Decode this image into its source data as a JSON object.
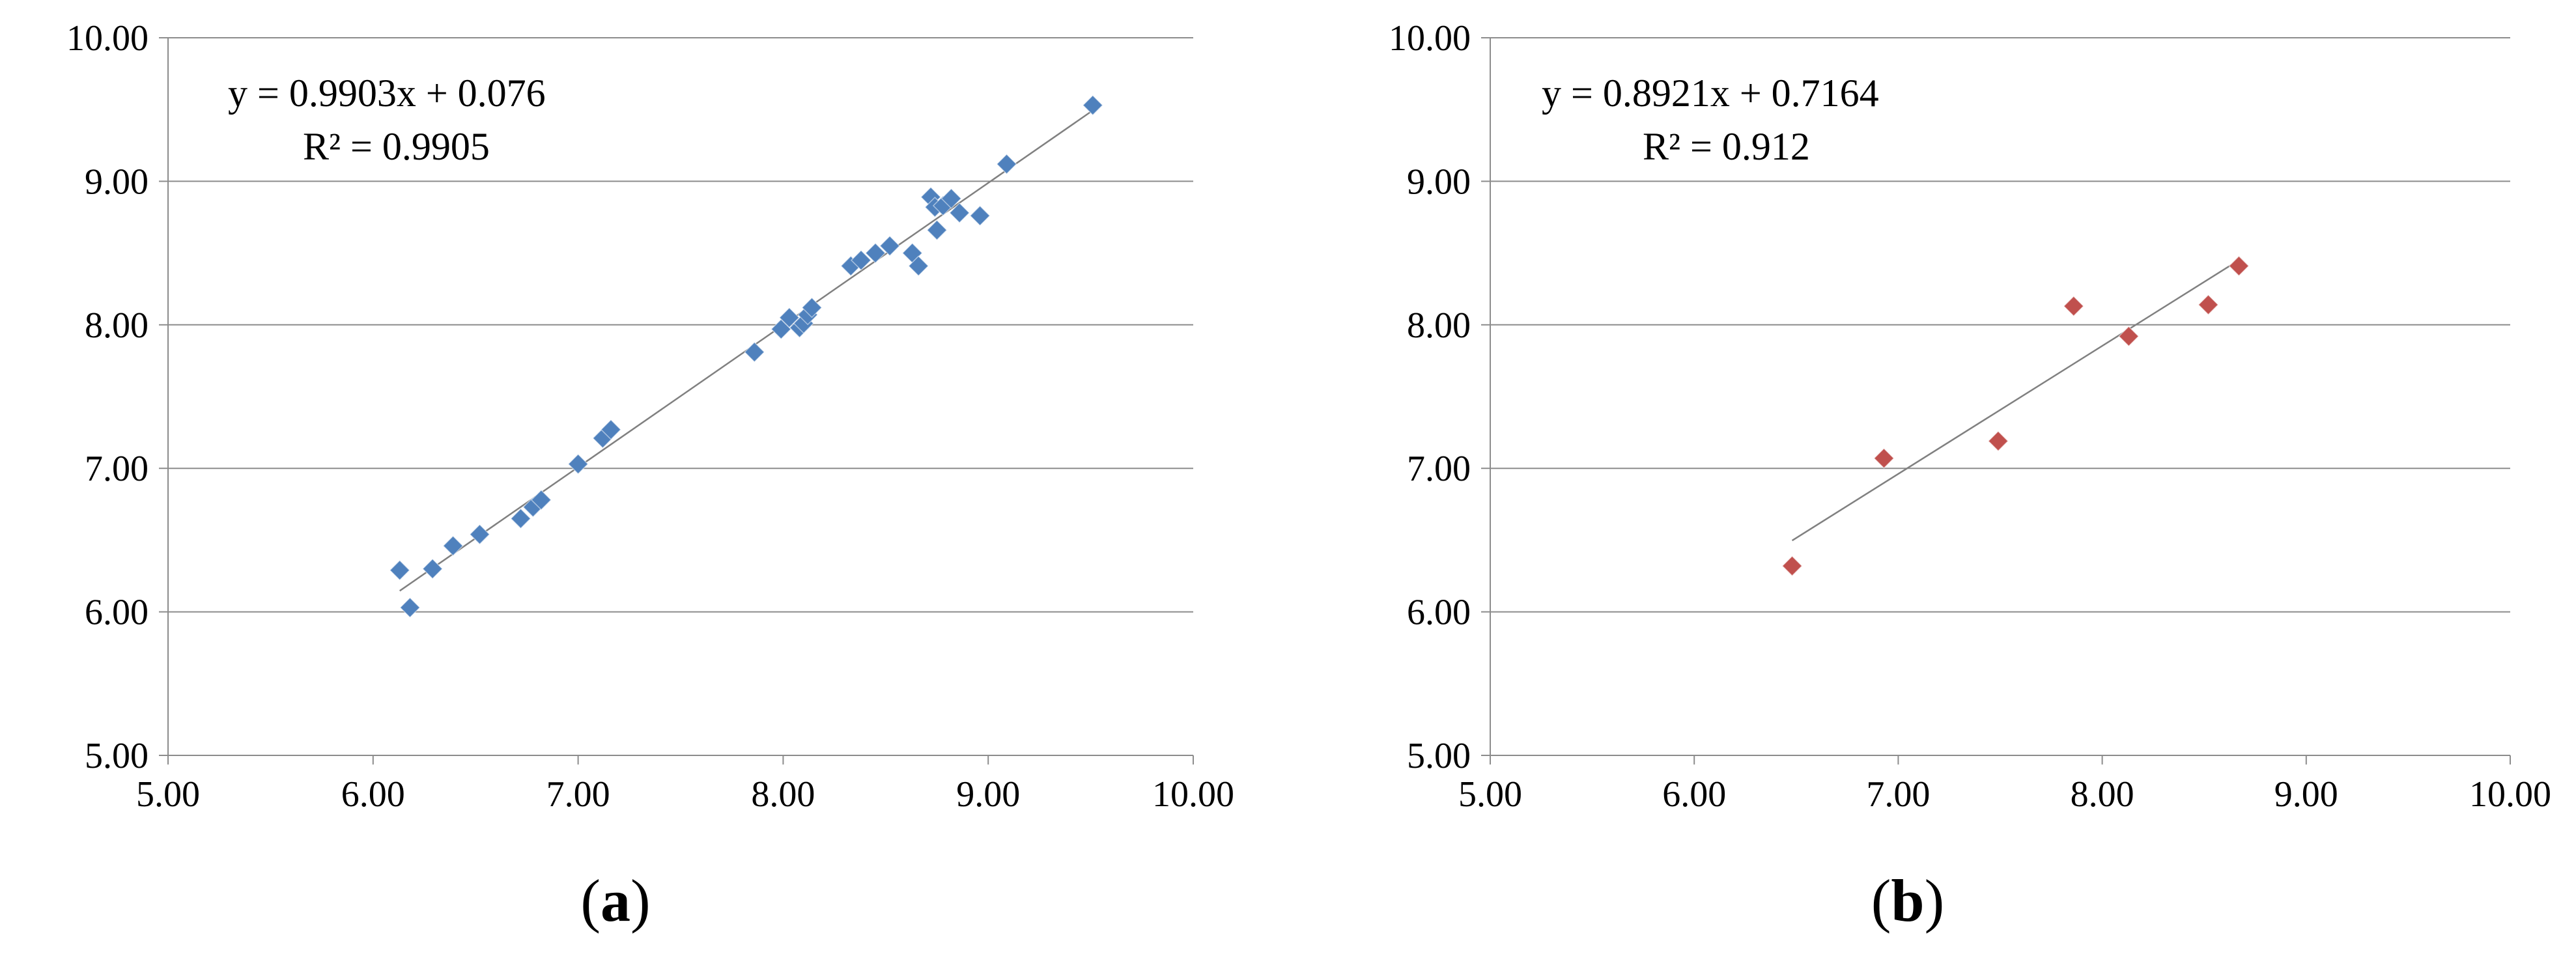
{
  "chart_data": [
    {
      "type": "scatter",
      "panel_label": "a",
      "trendline_equation": "y = 0.9903x + 0.076",
      "r_squared": "R² = 0.9905",
      "trendline": {
        "slope": 0.9903,
        "intercept": 0.076,
        "x_range": [
          6.13,
          9.52
        ]
      },
      "xlim": [
        5,
        10
      ],
      "ylim": [
        5,
        10
      ],
      "x_ticks": [
        "5.00",
        "6.00",
        "7.00",
        "8.00",
        "9.00",
        "10.00"
      ],
      "y_ticks": [
        "5.00",
        "6.00",
        "7.00",
        "8.00",
        "9.00",
        "10.00"
      ],
      "grid": "horizontal",
      "marker_color": "#4F81BD",
      "marker_shape": "diamond",
      "points": [
        [
          6.13,
          6.29
        ],
        [
          6.18,
          6.03
        ],
        [
          6.29,
          6.3
        ],
        [
          6.39,
          6.46
        ],
        [
          6.52,
          6.54
        ],
        [
          6.72,
          6.65
        ],
        [
          6.78,
          6.73
        ],
        [
          6.82,
          6.78
        ],
        [
          7.0,
          7.03
        ],
        [
          7.12,
          7.21
        ],
        [
          7.16,
          7.27
        ],
        [
          7.86,
          7.81
        ],
        [
          7.99,
          7.97
        ],
        [
          8.03,
          8.05
        ],
        [
          8.08,
          7.98
        ],
        [
          8.1,
          8.01
        ],
        [
          8.12,
          8.07
        ],
        [
          8.14,
          8.12
        ],
        [
          8.33,
          8.41
        ],
        [
          8.38,
          8.45
        ],
        [
          8.45,
          8.5
        ],
        [
          8.52,
          8.55
        ],
        [
          8.63,
          8.5
        ],
        [
          8.66,
          8.41
        ],
        [
          8.72,
          8.89
        ],
        [
          8.74,
          8.82
        ],
        [
          8.75,
          8.66
        ],
        [
          8.78,
          8.83
        ],
        [
          8.82,
          8.88
        ],
        [
          8.86,
          8.78
        ],
        [
          8.96,
          8.76
        ],
        [
          9.09,
          9.12
        ],
        [
          9.51,
          9.53
        ]
      ]
    },
    {
      "type": "scatter",
      "panel_label": "b",
      "trendline_equation": "y = 0.8921x + 0.7164",
      "r_squared": "R² = 0.912",
      "trendline": {
        "slope": 0.8921,
        "intercept": 0.7164,
        "x_range": [
          6.48,
          8.67
        ]
      },
      "xlim": [
        5,
        10
      ],
      "ylim": [
        5,
        10
      ],
      "x_ticks": [
        "5.00",
        "6.00",
        "7.00",
        "8.00",
        "9.00",
        "10.00"
      ],
      "y_ticks": [
        "5.00",
        "6.00",
        "7.00",
        "8.00",
        "9.00",
        "10.00"
      ],
      "grid": "horizontal",
      "marker_color": "#C0504D",
      "marker_shape": "diamond",
      "points": [
        [
          6.48,
          6.32
        ],
        [
          6.93,
          7.07
        ],
        [
          7.49,
          7.19
        ],
        [
          7.86,
          8.13
        ],
        [
          8.13,
          7.92
        ],
        [
          8.52,
          8.14
        ],
        [
          8.67,
          8.41
        ]
      ]
    }
  ]
}
